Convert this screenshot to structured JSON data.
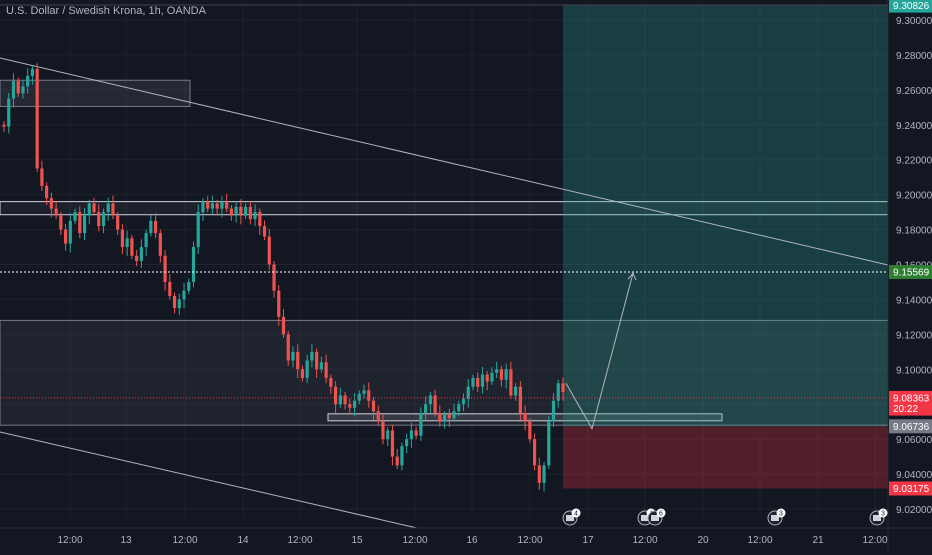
{
  "chart_data": {
    "type": "candlestick",
    "title": "U.S. Dollar / Swedish Krona, 1h, OANDA",
    "ylim": [
      9.01,
      9.31
    ],
    "grid": true,
    "y_ticks": [
      "9.30000",
      "9.28000",
      "9.26000",
      "9.24000",
      "9.22000",
      "9.20000",
      "9.18000",
      "9.16000",
      "9.14000",
      "9.12000",
      "9.10000",
      "9.08000",
      "9.06000",
      "9.04000",
      "9.02000"
    ],
    "x_ticks": [
      "12:00",
      "13",
      "12:00",
      "14",
      "12:00",
      "15",
      "12:00",
      "16",
      "12:00",
      "17",
      "12:00",
      "20",
      "12:00",
      "21",
      "12:00"
    ],
    "price_labels": [
      {
        "value": "9.30826",
        "color": "#26a69a"
      },
      {
        "value": "9.15569",
        "color": "#2e7d32"
      },
      {
        "value": "9.08363",
        "color": "#f23645"
      },
      {
        "value": "20:22",
        "color": "#f23645"
      },
      {
        "value": "9.06736",
        "color": "#787b86"
      },
      {
        "value": "9.03175",
        "color": "#f23645"
      }
    ],
    "closes": [
      9.239,
      9.255,
      9.265,
      9.258,
      9.262,
      9.268,
      9.272,
      9.215,
      9.205,
      9.198,
      9.192,
      9.188,
      9.18,
      9.172,
      9.185,
      9.19,
      9.178,
      9.188,
      9.195,
      9.19,
      9.182,
      9.19,
      9.195,
      9.188,
      9.18,
      9.17,
      9.175,
      9.165,
      9.162,
      9.17,
      9.178,
      9.185,
      9.178,
      9.165,
      9.15,
      9.142,
      9.135,
      9.14,
      9.145,
      9.15,
      9.17,
      9.19,
      9.196,
      9.192,
      9.195,
      9.192,
      9.196,
      9.192,
      9.188,
      9.193,
      9.188,
      9.193,
      9.186,
      9.19,
      9.182,
      9.176,
      9.16,
      9.145,
      9.13,
      9.12,
      9.105,
      9.11,
      9.1,
      9.095,
      9.105,
      9.11,
      9.1,
      9.104,
      9.095,
      9.09,
      9.08,
      9.085,
      9.08,
      9.078,
      9.082,
      9.086,
      9.088,
      9.082,
      9.076,
      9.07,
      9.06,
      9.065,
      9.05,
      9.045,
      9.056,
      9.06,
      9.065,
      9.062,
      9.075,
      9.08,
      9.085,
      9.075,
      9.07,
      9.074,
      9.072,
      9.076,
      9.08,
      9.083,
      9.09,
      9.095,
      9.09,
      9.097,
      9.093,
      9.098,
      9.1,
      9.094,
      9.1,
      9.085,
      9.09,
      9.075,
      9.07,
      9.06,
      9.045,
      9.035,
      9.045,
      9.07,
      9.082,
      9.092,
      9.087
    ]
  },
  "annotations": {
    "target_label": "9.15569",
    "entry_label": "9.06736",
    "stop_label": "9.03175",
    "event_badges": [
      "4",
      "4",
      "6",
      "3",
      "3"
    ]
  }
}
